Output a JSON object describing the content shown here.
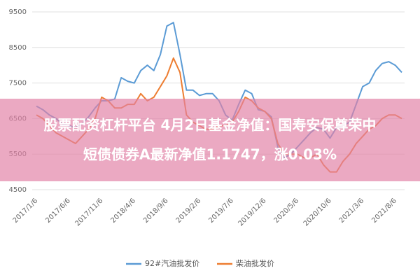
{
  "chart_data": {
    "type": "line",
    "categories": [
      "2017/1/6",
      null,
      null,
      null,
      null,
      "2017/6/6",
      null,
      null,
      null,
      null,
      "2017/11/6",
      null,
      null,
      null,
      null,
      "2018/4/6",
      null,
      null,
      null,
      null,
      "2018/9/6",
      null,
      null,
      null,
      null,
      "2019/2/6",
      null,
      null,
      null,
      null,
      "2019/7/6",
      null,
      null,
      null,
      null,
      "2019/12/6",
      null,
      null,
      null,
      null,
      "2020/5/6",
      null,
      null,
      null,
      null,
      "2020/10/6",
      null,
      null,
      null,
      null,
      "2021/3/6",
      null,
      null,
      null,
      null,
      "2021/8/6",
      null
    ],
    "series": [
      {
        "name": "92#汽油批发价",
        "color": "#5b9bd5",
        "values": [
          6850,
          6750,
          6600,
          6500,
          6350,
          6300,
          6250,
          6350,
          6550,
          6800,
          7000,
          7000,
          7050,
          7650,
          7550,
          7500,
          7850,
          8000,
          7850,
          8300,
          9100,
          9200,
          8300,
          7300,
          7300,
          7150,
          7200,
          7200,
          7000,
          6600,
          6450,
          6900,
          7300,
          7200,
          6750,
          6700,
          6550,
          5700,
          5400,
          5500,
          5700,
          5900,
          6100,
          6250,
          6200,
          5950,
          6250,
          6300,
          6400,
          6900,
          7400,
          7500,
          7850,
          8050,
          8100,
          8000,
          7800
        ]
      },
      {
        "name": "柴油批发价",
        "color": "#ed7d31",
        "values": [
          6600,
          6500,
          6300,
          6100,
          6000,
          5900,
          5800,
          6000,
          6200,
          6500,
          7100,
          7000,
          6800,
          6800,
          6900,
          6900,
          7200,
          7000,
          7100,
          7400,
          7700,
          8200,
          7800,
          6600,
          6400,
          6300,
          6200,
          6200,
          6300,
          6300,
          6400,
          6700,
          7100,
          7000,
          6800,
          6700,
          6500,
          5800,
          5500,
          5500,
          5500,
          5400,
          5400,
          5500,
          5200,
          5000,
          5000,
          5300,
          5500,
          5800,
          6000,
          6200,
          6300,
          6500,
          6600,
          6600,
          6500
        ]
      }
    ],
    "ylim": [
      4500,
      9500
    ],
    "yticks": [
      4500,
      5500,
      6500,
      7500,
      8500,
      9500
    ],
    "grid": true,
    "legend": "bottom"
  },
  "banner": {
    "lines": [
      "股票配资杠杆平台 4月2日基金净值：国寿安保尊荣中",
      "短债债券A最新净值1.1747，涨0.03%"
    ]
  }
}
